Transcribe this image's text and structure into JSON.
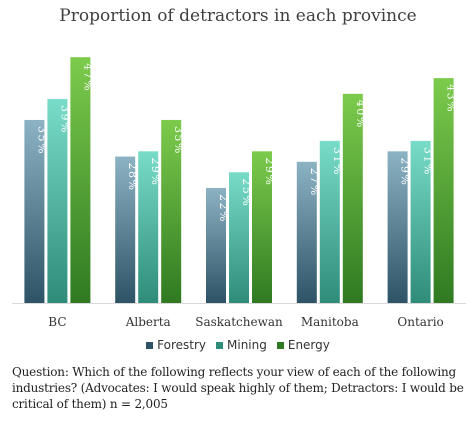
{
  "chart_data": {
    "type": "bar",
    "title": "Proportion of detractors in each province",
    "categories": [
      "BC",
      "Alberta",
      "Saskatchewan",
      "Manitoba",
      "Ontario"
    ],
    "series": [
      {
        "name": "Forestry",
        "values": [
          35,
          28,
          22,
          27,
          29
        ],
        "labels": [
          "35%",
          "28%",
          "22%",
          "27%",
          "29%"
        ]
      },
      {
        "name": "Mining",
        "values": [
          39,
          29,
          25,
          31,
          31
        ],
        "labels": [
          "39%",
          "29%",
          "25%",
          "31%",
          "31%"
        ]
      },
      {
        "name": "Energy",
        "values": [
          47,
          35,
          29,
          40,
          43
        ],
        "labels": [
          "47%",
          "35%",
          "29%",
          "40%",
          "43%"
        ]
      }
    ],
    "ylim": [
      0,
      50
    ],
    "grid": false,
    "legend_position": "bottom",
    "colors": {
      "Forestry": [
        "#8cb3c4",
        "#2e5366"
      ],
      "Mining": [
        "#78dcc8",
        "#2f8c7a"
      ],
      "Energy": [
        "#7ccb4c",
        "#2f7a22"
      ]
    }
  },
  "footnote": "Question: Which of the following reflects your view of each of the following industries? (Advocates: I would speak highly of them; Detractors: I would be critical of them) n = 2,005"
}
